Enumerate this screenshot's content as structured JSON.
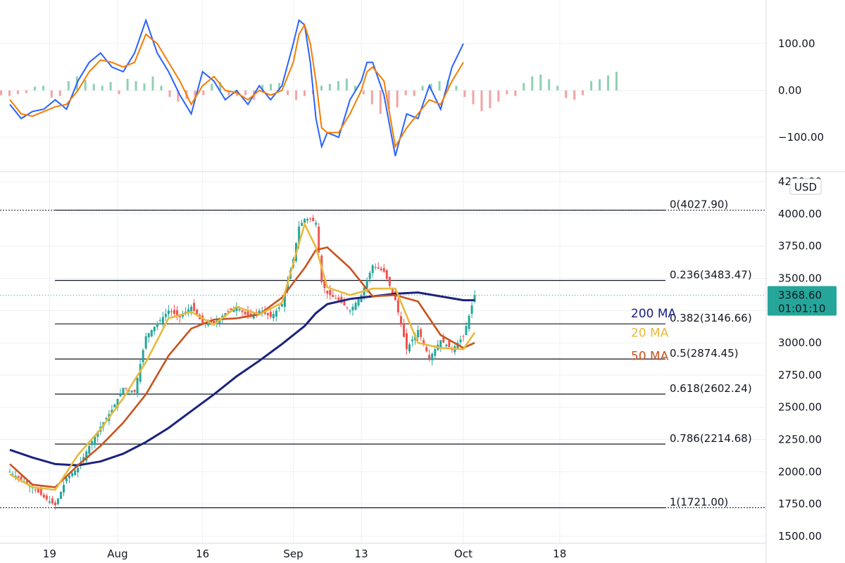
{
  "chart_data": {
    "type": "candlestick",
    "currency_badge": "USD",
    "x_ticks": [
      {
        "label": "19",
        "day": 19
      },
      {
        "label": "Aug",
        "day": 31
      },
      {
        "label": "16",
        "day": 46
      },
      {
        "label": "Sep",
        "day": 62
      },
      {
        "label": "13",
        "day": 74
      },
      {
        "label": "Oct",
        "day": 92
      },
      {
        "label": "18",
        "day": 109
      }
    ],
    "price_panel": {
      "ylim": [
        1500,
        4250
      ],
      "ticks": [
        "4250.00",
        "4000.00",
        "3750.00",
        "3500.00",
        "3250.00",
        "3000.00",
        "2750.00",
        "2500.00",
        "2250.00",
        "2000.00",
        "1750.00",
        "1500.00"
      ],
      "last_price": {
        "label": "3368.60",
        "value": 3368.6,
        "countdown": "01:01:10",
        "color": "#26a69a"
      },
      "fib_levels": [
        {
          "label": "0(4027.90)",
          "value": 4027.9
        },
        {
          "label": "0.236(3483.47)",
          "value": 3483.47
        },
        {
          "label": "0.382(3146.66)",
          "value": 3146.66
        },
        {
          "label": "0.5(2874.45)",
          "value": 2874.45
        },
        {
          "label": "0.618(2602.24)",
          "value": 2602.24
        },
        {
          "label": "0.786(2214.68)",
          "value": 2214.68
        },
        {
          "label": "1(1721.00)",
          "value": 1721.0
        }
      ],
      "moving_averages": [
        {
          "name": "200 MA",
          "color": "#1a237e",
          "points": [
            [
              12,
              2170
            ],
            [
              16,
              2110
            ],
            [
              20,
              2060
            ],
            [
              24,
              2050
            ],
            [
              28,
              2080
            ],
            [
              32,
              2140
            ],
            [
              36,
              2230
            ],
            [
              40,
              2340
            ],
            [
              44,
              2470
            ],
            [
              48,
              2600
            ],
            [
              52,
              2740
            ],
            [
              56,
              2860
            ],
            [
              60,
              2990
            ],
            [
              64,
              3130
            ],
            [
              66,
              3230
            ],
            [
              68,
              3300
            ],
            [
              72,
              3340
            ],
            [
              76,
              3360
            ],
            [
              80,
              3380
            ],
            [
              84,
              3390
            ],
            [
              88,
              3360
            ],
            [
              92,
              3330
            ],
            [
              94,
              3330
            ]
          ]
        },
        {
          "name": "50 MA",
          "color": "#c8531e",
          "points": [
            [
              12,
              2060
            ],
            [
              16,
              1900
            ],
            [
              20,
              1880
            ],
            [
              24,
              2050
            ],
            [
              28,
              2200
            ],
            [
              32,
              2380
            ],
            [
              36,
              2600
            ],
            [
              40,
              2900
            ],
            [
              44,
              3110
            ],
            [
              48,
              3180
            ],
            [
              52,
              3190
            ],
            [
              56,
              3220
            ],
            [
              60,
              3350
            ],
            [
              64,
              3580
            ],
            [
              66,
              3720
            ],
            [
              68,
              3740
            ],
            [
              72,
              3580
            ],
            [
              76,
              3360
            ],
            [
              80,
              3370
            ],
            [
              84,
              3320
            ],
            [
              88,
              3060
            ],
            [
              92,
              2960
            ],
            [
              94,
              3000
            ]
          ]
        },
        {
          "name": "20 MA",
          "color": "#e8b93c",
          "points": [
            [
              12,
              1980
            ],
            [
              16,
              1880
            ],
            [
              20,
              1860
            ],
            [
              24,
              2130
            ],
            [
              28,
              2330
            ],
            [
              32,
              2570
            ],
            [
              36,
              2850
            ],
            [
              40,
              3190
            ],
            [
              44,
              3240
            ],
            [
              48,
              3140
            ],
            [
              52,
              3280
            ],
            [
              56,
              3220
            ],
            [
              60,
              3310
            ],
            [
              64,
              3920
            ],
            [
              66,
              3740
            ],
            [
              68,
              3430
            ],
            [
              72,
              3370
            ],
            [
              76,
              3420
            ],
            [
              80,
              3420
            ],
            [
              84,
              3000
            ],
            [
              88,
              2960
            ],
            [
              92,
              2950
            ],
            [
              94,
              3080
            ]
          ]
        }
      ],
      "close_path": [
        [
          12,
          2000
        ],
        [
          14,
          1940
        ],
        [
          16,
          1880
        ],
        [
          18,
          1800
        ],
        [
          20,
          1740
        ],
        [
          22,
          1950
        ],
        [
          24,
          2030
        ],
        [
          26,
          2200
        ],
        [
          28,
          2350
        ],
        [
          30,
          2480
        ],
        [
          32,
          2650
        ],
        [
          34,
          2620
        ],
        [
          36,
          3050
        ],
        [
          38,
          3150
        ],
        [
          40,
          3250
        ],
        [
          42,
          3200
        ],
        [
          44,
          3280
        ],
        [
          46,
          3150
        ],
        [
          48,
          3150
        ],
        [
          50,
          3230
        ],
        [
          52,
          3280
        ],
        [
          54,
          3200
        ],
        [
          56,
          3250
        ],
        [
          58,
          3200
        ],
        [
          60,
          3300
        ],
        [
          62,
          3650
        ],
        [
          63,
          3900
        ],
        [
          64,
          3960
        ],
        [
          65,
          3960
        ],
        [
          66,
          3930
        ],
        [
          67,
          3470
        ],
        [
          68,
          3380
        ],
        [
          70,
          3330
        ],
        [
          72,
          3250
        ],
        [
          74,
          3370
        ],
        [
          76,
          3600
        ],
        [
          78,
          3550
        ],
        [
          80,
          3330
        ],
        [
          82,
          2950
        ],
        [
          84,
          3100
        ],
        [
          86,
          2880
        ],
        [
          88,
          3020
        ],
        [
          90,
          2950
        ],
        [
          92,
          3050
        ],
        [
          94,
          3368.6
        ]
      ]
    },
    "oscillator_panel": {
      "ylim": [
        -160,
        170
      ],
      "ticks": [
        "100.00",
        "0.00",
        "−100.00"
      ],
      "lines": [
        {
          "name": "fast",
          "color": "#2962ff",
          "points": [
            [
              12,
              -30
            ],
            [
              14,
              -60
            ],
            [
              16,
              -45
            ],
            [
              18,
              -40
            ],
            [
              20,
              -20
            ],
            [
              22,
              -40
            ],
            [
              24,
              20
            ],
            [
              26,
              60
            ],
            [
              28,
              80
            ],
            [
              30,
              50
            ],
            [
              32,
              40
            ],
            [
              34,
              80
            ],
            [
              36,
              150
            ],
            [
              38,
              80
            ],
            [
              40,
              40
            ],
            [
              42,
              -10
            ],
            [
              44,
              -50
            ],
            [
              46,
              40
            ],
            [
              48,
              20
            ],
            [
              50,
              -20
            ],
            [
              52,
              0
            ],
            [
              54,
              -30
            ],
            [
              56,
              10
            ],
            [
              58,
              -20
            ],
            [
              60,
              10
            ],
            [
              62,
              100
            ],
            [
              63,
              150
            ],
            [
              64,
              140
            ],
            [
              65,
              60
            ],
            [
              66,
              -60
            ],
            [
              67,
              -120
            ],
            [
              68,
              -90
            ],
            [
              70,
              -100
            ],
            [
              72,
              -20
            ],
            [
              74,
              20
            ],
            [
              75,
              60
            ],
            [
              76,
              60
            ],
            [
              78,
              -10
            ],
            [
              80,
              -140
            ],
            [
              82,
              -50
            ],
            [
              84,
              -60
            ],
            [
              86,
              10
            ],
            [
              88,
              -40
            ],
            [
              90,
              50
            ],
            [
              92,
              100
            ]
          ]
        },
        {
          "name": "slow",
          "color": "#f57c00",
          "points": [
            [
              12,
              -20
            ],
            [
              14,
              -50
            ],
            [
              16,
              -55
            ],
            [
              18,
              -45
            ],
            [
              20,
              -35
            ],
            [
              22,
              -30
            ],
            [
              24,
              0
            ],
            [
              26,
              40
            ],
            [
              28,
              65
            ],
            [
              30,
              60
            ],
            [
              32,
              50
            ],
            [
              34,
              60
            ],
            [
              36,
              120
            ],
            [
              38,
              100
            ],
            [
              40,
              60
            ],
            [
              42,
              20
            ],
            [
              44,
              -30
            ],
            [
              46,
              10
            ],
            [
              48,
              30
            ],
            [
              50,
              0
            ],
            [
              52,
              -5
            ],
            [
              54,
              -20
            ],
            [
              56,
              0
            ],
            [
              58,
              -10
            ],
            [
              60,
              0
            ],
            [
              62,
              60
            ],
            [
              63,
              120
            ],
            [
              64,
              140
            ],
            [
              65,
              100
            ],
            [
              66,
              20
            ],
            [
              67,
              -80
            ],
            [
              68,
              -90
            ],
            [
              70,
              -90
            ],
            [
              72,
              -50
            ],
            [
              74,
              0
            ],
            [
              75,
              40
            ],
            [
              76,
              50
            ],
            [
              78,
              20
            ],
            [
              80,
              -120
            ],
            [
              82,
              -80
            ],
            [
              84,
              -50
            ],
            [
              86,
              -20
            ],
            [
              88,
              -30
            ],
            [
              90,
              20
            ],
            [
              92,
              60
            ]
          ]
        }
      ],
      "histogram": [
        -10,
        -12,
        -8,
        -6,
        8,
        10,
        -15,
        -12,
        20,
        30,
        22,
        14,
        10,
        18,
        -8,
        25,
        20,
        15,
        30,
        10,
        -14,
        -24,
        -18,
        -16,
        -10,
        14,
        18,
        -10,
        -12,
        -10,
        -20,
        12,
        14,
        16,
        -10,
        -20,
        -12,
        -8,
        10,
        14,
        20,
        25,
        10,
        -8,
        -30,
        -50,
        -40,
        -36,
        -10,
        -12,
        10,
        14,
        20,
        22,
        10,
        -14,
        -30,
        -44,
        -38,
        -24,
        -8,
        -12,
        16,
        30,
        34,
        24,
        10,
        -16,
        -20,
        -10,
        20,
        24,
        32,
        40
      ]
    }
  }
}
